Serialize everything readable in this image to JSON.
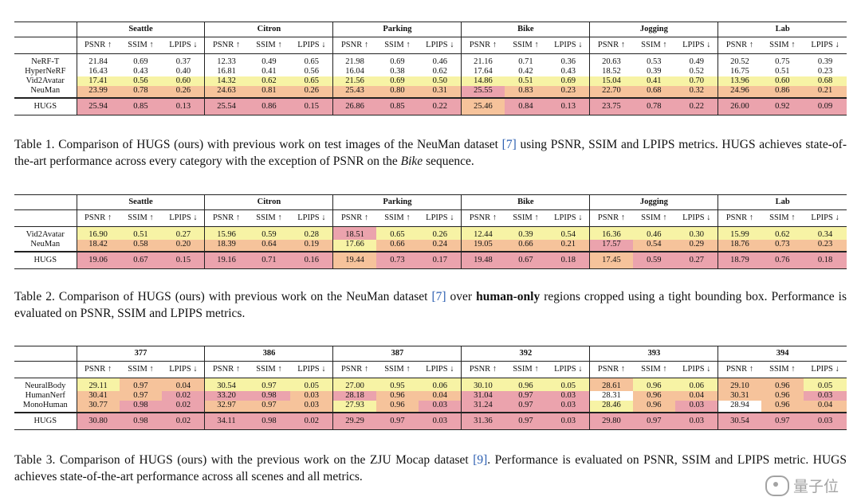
{
  "tables": [
    {
      "groups": [
        "Seattle",
        "Citron",
        "Parking",
        "Bike",
        "Jogging",
        "Lab"
      ],
      "metrics": [
        "PSNR ↑",
        "SSIM ↑",
        "LPIPS ↓"
      ],
      "rows": [
        {
          "method": "NeRF-T",
          "cells": [
            [
              "21.84",
              ""
            ],
            [
              "0.69",
              ""
            ],
            [
              "0.37",
              ""
            ],
            [
              "12.33",
              ""
            ],
            [
              "0.49",
              ""
            ],
            [
              "0.65",
              ""
            ],
            [
              "21.98",
              ""
            ],
            [
              "0.69",
              ""
            ],
            [
              "0.46",
              ""
            ],
            [
              "21.16",
              ""
            ],
            [
              "0.71",
              ""
            ],
            [
              "0.36",
              ""
            ],
            [
              "20.63",
              ""
            ],
            [
              "0.53",
              ""
            ],
            [
              "0.49",
              ""
            ],
            [
              "20.52",
              ""
            ],
            [
              "0.75",
              ""
            ],
            [
              "0.39",
              ""
            ]
          ]
        },
        {
          "method": "HyperNeRF",
          "cells": [
            [
              "16.43",
              ""
            ],
            [
              "0.43",
              ""
            ],
            [
              "0.40",
              ""
            ],
            [
              "16.81",
              ""
            ],
            [
              "0.41",
              ""
            ],
            [
              "0.56",
              ""
            ],
            [
              "16.04",
              ""
            ],
            [
              "0.38",
              ""
            ],
            [
              "0.62",
              ""
            ],
            [
              "17.64",
              ""
            ],
            [
              "0.42",
              ""
            ],
            [
              "0.43",
              ""
            ],
            [
              "18.52",
              ""
            ],
            [
              "0.39",
              ""
            ],
            [
              "0.52",
              ""
            ],
            [
              "16.75",
              ""
            ],
            [
              "0.51",
              ""
            ],
            [
              "0.23",
              ""
            ]
          ]
        },
        {
          "method": "Vid2Avatar",
          "cells": [
            [
              "17.41",
              "c3"
            ],
            [
              "0.56",
              "c3"
            ],
            [
              "0.60",
              "c3"
            ],
            [
              "14.32",
              "c3"
            ],
            [
              "0.62",
              "c3"
            ],
            [
              "0.65",
              "c3"
            ],
            [
              "21.56",
              "c3"
            ],
            [
              "0.69",
              "c3"
            ],
            [
              "0.50",
              "c3"
            ],
            [
              "14.86",
              "c3"
            ],
            [
              "0.51",
              "c3"
            ],
            [
              "0.69",
              "c3"
            ],
            [
              "15.04",
              "c3"
            ],
            [
              "0.41",
              "c3"
            ],
            [
              "0.70",
              "c3"
            ],
            [
              "13.96",
              "c3"
            ],
            [
              "0.60",
              "c3"
            ],
            [
              "0.68",
              "c3"
            ]
          ]
        },
        {
          "method": "NeuMan",
          "cells": [
            [
              "23.99",
              "c2"
            ],
            [
              "0.78",
              "c2"
            ],
            [
              "0.26",
              "c2"
            ],
            [
              "24.63",
              "c2"
            ],
            [
              "0.81",
              "c2"
            ],
            [
              "0.26",
              "c2"
            ],
            [
              "25.43",
              "c2"
            ],
            [
              "0.80",
              "c2"
            ],
            [
              "0.31",
              "c2"
            ],
            [
              "25.55",
              "c1"
            ],
            [
              "0.83",
              "c2"
            ],
            [
              "0.23",
              "c2"
            ],
            [
              "22.70",
              "c2"
            ],
            [
              "0.68",
              "c2"
            ],
            [
              "0.32",
              "c2"
            ],
            [
              "24.96",
              "c2"
            ],
            [
              "0.86",
              "c2"
            ],
            [
              "0.21",
              "c2"
            ]
          ]
        }
      ],
      "hugs": {
        "method": "HUGS",
        "cells": [
          [
            "25.94",
            "c1"
          ],
          [
            "0.85",
            "c1"
          ],
          [
            "0.13",
            "c1"
          ],
          [
            "25.54",
            "c1"
          ],
          [
            "0.86",
            "c1"
          ],
          [
            "0.15",
            "c1"
          ],
          [
            "26.86",
            "c1"
          ],
          [
            "0.85",
            "c1"
          ],
          [
            "0.22",
            "c1"
          ],
          [
            "25.46",
            "c2"
          ],
          [
            "0.84",
            "c1"
          ],
          [
            "0.13",
            "c1"
          ],
          [
            "23.75",
            "c1"
          ],
          [
            "0.78",
            "c1"
          ],
          [
            "0.22",
            "c1"
          ],
          [
            "26.00",
            "c1"
          ],
          [
            "0.92",
            "c1"
          ],
          [
            "0.09",
            "c1"
          ]
        ]
      }
    },
    {
      "groups": [
        "Seattle",
        "Citron",
        "Parking",
        "Bike",
        "Jogging",
        "Lab"
      ],
      "metrics": [
        "PSNR ↑",
        "SSIM ↑",
        "LPIPS ↓"
      ],
      "rows": [
        {
          "method": "Vid2Avatar",
          "cells": [
            [
              "16.90",
              "c3"
            ],
            [
              "0.51",
              "c3"
            ],
            [
              "0.27",
              "c3"
            ],
            [
              "15.96",
              "c3"
            ],
            [
              "0.59",
              "c3"
            ],
            [
              "0.28",
              "c3"
            ],
            [
              "18.51",
              "c1"
            ],
            [
              "0.65",
              "c3"
            ],
            [
              "0.26",
              "c3"
            ],
            [
              "12.44",
              "c3"
            ],
            [
              "0.39",
              "c3"
            ],
            [
              "0.54",
              "c3"
            ],
            [
              "16.36",
              "c3"
            ],
            [
              "0.46",
              "c3"
            ],
            [
              "0.30",
              "c3"
            ],
            [
              "15.99",
              "c3"
            ],
            [
              "0.62",
              "c3"
            ],
            [
              "0.34",
              "c3"
            ]
          ]
        },
        {
          "method": "NeuMan",
          "cells": [
            [
              "18.42",
              "c2"
            ],
            [
              "0.58",
              "c2"
            ],
            [
              "0.20",
              "c2"
            ],
            [
              "18.39",
              "c2"
            ],
            [
              "0.64",
              "c2"
            ],
            [
              "0.19",
              "c2"
            ],
            [
              "17.66",
              "c3"
            ],
            [
              "0.66",
              "c2"
            ],
            [
              "0.24",
              "c2"
            ],
            [
              "19.05",
              "c2"
            ],
            [
              "0.66",
              "c2"
            ],
            [
              "0.21",
              "c2"
            ],
            [
              "17.57",
              "c1"
            ],
            [
              "0.54",
              "c2"
            ],
            [
              "0.29",
              "c2"
            ],
            [
              "18.76",
              "c2"
            ],
            [
              "0.73",
              "c2"
            ],
            [
              "0.23",
              "c2"
            ]
          ]
        }
      ],
      "hugs": {
        "method": "HUGS",
        "cells": [
          [
            "19.06",
            "c1"
          ],
          [
            "0.67",
            "c1"
          ],
          [
            "0.15",
            "c1"
          ],
          [
            "19.16",
            "c1"
          ],
          [
            "0.71",
            "c1"
          ],
          [
            "0.16",
            "c1"
          ],
          [
            "19.44",
            "c2"
          ],
          [
            "0.73",
            "c1"
          ],
          [
            "0.17",
            "c1"
          ],
          [
            "19.48",
            "c1"
          ],
          [
            "0.67",
            "c1"
          ],
          [
            "0.18",
            "c1"
          ],
          [
            "17.45",
            "c2"
          ],
          [
            "0.59",
            "c1"
          ],
          [
            "0.27",
            "c1"
          ],
          [
            "18.79",
            "c1"
          ],
          [
            "0.76",
            "c1"
          ],
          [
            "0.18",
            "c1"
          ]
        ]
      }
    },
    {
      "groups": [
        "377",
        "386",
        "387",
        "392",
        "393",
        "394"
      ],
      "metrics": [
        "PSNR ↑",
        "SSIM ↑",
        "LPIPS ↓"
      ],
      "rows": [
        {
          "method": "NeuralBody",
          "cells": [
            [
              "29.11",
              "c3"
            ],
            [
              "0.97",
              "c2"
            ],
            [
              "0.04",
              "c2"
            ],
            [
              "30.54",
              "c3"
            ],
            [
              "0.97",
              "c3"
            ],
            [
              "0.05",
              "c3"
            ],
            [
              "27.00",
              "c3"
            ],
            [
              "0.95",
              "c3"
            ],
            [
              "0.06",
              "c3"
            ],
            [
              "30.10",
              "c3"
            ],
            [
              "0.96",
              "c3"
            ],
            [
              "0.05",
              "c3"
            ],
            [
              "28.61",
              "c2"
            ],
            [
              "0.96",
              "c3"
            ],
            [
              "0.06",
              "c3"
            ],
            [
              "29.10",
              "c2"
            ],
            [
              "0.96",
              "c2"
            ],
            [
              "0.05",
              "c3"
            ]
          ]
        },
        {
          "method": "HumanNerf",
          "cells": [
            [
              "30.41",
              "c2"
            ],
            [
              "0.97",
              "c2"
            ],
            [
              "0.02",
              "c1"
            ],
            [
              "33.20",
              "c1"
            ],
            [
              "0.98",
              "c1"
            ],
            [
              "0.03",
              "c2"
            ],
            [
              "28.18",
              "c1"
            ],
            [
              "0.96",
              "c2"
            ],
            [
              "0.04",
              "c2"
            ],
            [
              "31.04",
              "c1"
            ],
            [
              "0.97",
              "c1"
            ],
            [
              "0.03",
              "c1"
            ],
            [
              "28.31",
              ""
            ],
            [
              "0.96",
              "c2"
            ],
            [
              "0.04",
              "c2"
            ],
            [
              "30.31",
              "c2"
            ],
            [
              "0.96",
              "c2"
            ],
            [
              "0.03",
              "c1"
            ]
          ]
        },
        {
          "method": "MonoHuman",
          "cells": [
            [
              "30.77",
              "c2"
            ],
            [
              "0.98",
              "c1"
            ],
            [
              "0.02",
              "c1"
            ],
            [
              "32.97",
              "c2"
            ],
            [
              "0.97",
              "c2"
            ],
            [
              "0.03",
              "c2"
            ],
            [
              "27.93",
              "c3"
            ],
            [
              "0.96",
              "c2"
            ],
            [
              "0.03",
              "c1"
            ],
            [
              "31.24",
              "c1"
            ],
            [
              "0.97",
              "c1"
            ],
            [
              "0.03",
              "c1"
            ],
            [
              "28.46",
              "c3"
            ],
            [
              "0.96",
              "c2"
            ],
            [
              "0.03",
              "c1"
            ],
            [
              "28.94",
              ""
            ],
            [
              "0.96",
              "c2"
            ],
            [
              "0.04",
              "c2"
            ]
          ]
        }
      ],
      "hugs": {
        "method": "HUGS",
        "cells": [
          [
            "30.80",
            "c1"
          ],
          [
            "0.98",
            "c1"
          ],
          [
            "0.02",
            "c1"
          ],
          [
            "34.11",
            "c1"
          ],
          [
            "0.98",
            "c1"
          ],
          [
            "0.02",
            "c1"
          ],
          [
            "29.29",
            "c1"
          ],
          [
            "0.97",
            "c1"
          ],
          [
            "0.03",
            "c1"
          ],
          [
            "31.36",
            "c1"
          ],
          [
            "0.97",
            "c1"
          ],
          [
            "0.03",
            "c1"
          ],
          [
            "29.80",
            "c1"
          ],
          [
            "0.97",
            "c1"
          ],
          [
            "0.03",
            "c1"
          ],
          [
            "30.54",
            "c1"
          ],
          [
            "0.97",
            "c1"
          ],
          [
            "0.03",
            "c1"
          ]
        ]
      }
    }
  ],
  "captions": {
    "t1": {
      "a": "Table 1. Comparison of HUGS (ours) with previous work on test images of the NeuMan dataset ",
      "cite": "[7]",
      "b": " using PSNR, SSIM and LPIPS metrics. HUGS achieves state-of-the-art performance across every category with the exception of PSNR on the ",
      "em": "Bike",
      "c": " sequence."
    },
    "t2": {
      "a": "Table 2.  Comparison of HUGS (ours) with previous work on the NeuMan dataset ",
      "cite": "[7]",
      "b": " over ",
      "strong": "human-only",
      "c": " regions cropped using a tight bounding box. Performance is evaluated on PSNR, SSIM and LPIPS metrics."
    },
    "t3": {
      "a": "Table 3.  Comparison of HUGS (ours) with the previous work on the ZJU Mocap dataset ",
      "cite": "[9]",
      "b": ".  Performance is evaluated on PSNR, SSIM and LPIPS metric. HUGS achieves state-of-the-art performance across all scenes and all metrics."
    }
  },
  "watermark": {
    "text": "量子位",
    "icon": "wechat-logo-icon"
  }
}
